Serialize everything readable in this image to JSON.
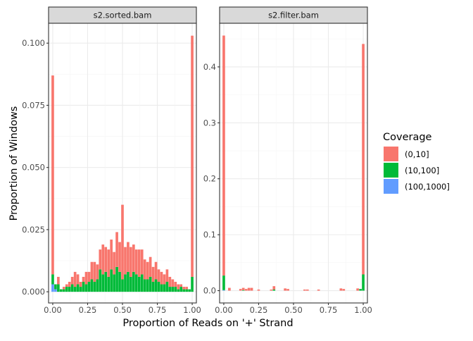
{
  "chart_data": {
    "type": "bar",
    "stacked": true,
    "xlabel": "Proportion of Reads on '+' Strand",
    "ylabel": "Proportion of Windows",
    "legend": {
      "title": "Coverage",
      "placement": "right",
      "entries": [
        {
          "name": "(0,10]",
          "color": "#F8766D"
        },
        {
          "name": "(10,100]",
          "color": "#00BA38"
        },
        {
          "name": "(100,1000]",
          "color": "#619CFF"
        }
      ]
    },
    "grid": true,
    "colors": {
      "panel_bg": "#FFFFFF",
      "grid_major": "#EBEBEB",
      "grid_minor": "#F5F5F5",
      "strip_bg": "#D9D9D9",
      "border": "#333333"
    },
    "xticks": [
      "0.00",
      "0.25",
      "0.50",
      "0.75",
      "1.00"
    ],
    "xlim": [
      -0.03,
      1.03
    ],
    "panels": [
      {
        "name": "s2.sorted.bam",
        "ylim": [
          -0.0045,
          0.108
        ],
        "yticks": [
          "0.000",
          "0.025",
          "0.050",
          "0.075",
          "0.100"
        ],
        "series": [
          {
            "name": "(0,10]",
            "points": [
              [
                0.0,
                0.08
              ],
              [
                0.02,
                0.0
              ],
              [
                0.04,
                0.003
              ],
              [
                0.06,
                0.0
              ],
              [
                0.08,
                0.001
              ],
              [
                0.1,
                0.001
              ],
              [
                0.12,
                0.002
              ],
              [
                0.14,
                0.003
              ],
              [
                0.16,
                0.006
              ],
              [
                0.18,
                0.004
              ],
              [
                0.2,
                0.002
              ],
              [
                0.22,
                0.002
              ],
              [
                0.24,
                0.005
              ],
              [
                0.26,
                0.004
              ],
              [
                0.28,
                0.007
              ],
              [
                0.3,
                0.008
              ],
              [
                0.32,
                0.006
              ],
              [
                0.34,
                0.008
              ],
              [
                0.36,
                0.012
              ],
              [
                0.38,
                0.01
              ],
              [
                0.4,
                0.011
              ],
              [
                0.42,
                0.012
              ],
              [
                0.44,
                0.009
              ],
              [
                0.46,
                0.014
              ],
              [
                0.48,
                0.012
              ],
              [
                0.5,
                0.03
              ],
              [
                0.52,
                0.011
              ],
              [
                0.54,
                0.012
              ],
              [
                0.56,
                0.012
              ],
              [
                0.58,
                0.011
              ],
              [
                0.6,
                0.01
              ],
              [
                0.62,
                0.011
              ],
              [
                0.64,
                0.01
              ],
              [
                0.66,
                0.008
              ],
              [
                0.68,
                0.007
              ],
              [
                0.7,
                0.008
              ],
              [
                0.72,
                0.006
              ],
              [
                0.74,
                0.007
              ],
              [
                0.76,
                0.005
              ],
              [
                0.78,
                0.005
              ],
              [
                0.8,
                0.004
              ],
              [
                0.82,
                0.005
              ],
              [
                0.84,
                0.004
              ],
              [
                0.86,
                0.003
              ],
              [
                0.88,
                0.002
              ],
              [
                0.9,
                0.002
              ],
              [
                0.92,
                0.001
              ],
              [
                0.94,
                0.001
              ],
              [
                0.96,
                0.001
              ],
              [
                0.98,
                0.0
              ],
              [
                1.0,
                0.097
              ]
            ]
          },
          {
            "name": "(10,100]",
            "points": [
              [
                0.0,
                0.004
              ],
              [
                0.02,
                0.002
              ],
              [
                0.04,
                0.003
              ],
              [
                0.06,
                0.001
              ],
              [
                0.08,
                0.001
              ],
              [
                0.1,
                0.002
              ],
              [
                0.12,
                0.002
              ],
              [
                0.14,
                0.003
              ],
              [
                0.16,
                0.002
              ],
              [
                0.18,
                0.003
              ],
              [
                0.2,
                0.002
              ],
              [
                0.22,
                0.004
              ],
              [
                0.24,
                0.003
              ],
              [
                0.26,
                0.004
              ],
              [
                0.28,
                0.005
              ],
              [
                0.3,
                0.004
              ],
              [
                0.32,
                0.005
              ],
              [
                0.34,
                0.009
              ],
              [
                0.36,
                0.007
              ],
              [
                0.38,
                0.008
              ],
              [
                0.4,
                0.006
              ],
              [
                0.42,
                0.009
              ],
              [
                0.44,
                0.007
              ],
              [
                0.46,
                0.01
              ],
              [
                0.48,
                0.008
              ],
              [
                0.5,
                0.005
              ],
              [
                0.52,
                0.007
              ],
              [
                0.54,
                0.008
              ],
              [
                0.56,
                0.006
              ],
              [
                0.58,
                0.008
              ],
              [
                0.6,
                0.007
              ],
              [
                0.62,
                0.006
              ],
              [
                0.64,
                0.007
              ],
              [
                0.66,
                0.005
              ],
              [
                0.68,
                0.005
              ],
              [
                0.7,
                0.006
              ],
              [
                0.72,
                0.004
              ],
              [
                0.74,
                0.005
              ],
              [
                0.76,
                0.004
              ],
              [
                0.78,
                0.003
              ],
              [
                0.8,
                0.003
              ],
              [
                0.82,
                0.004
              ],
              [
                0.84,
                0.002
              ],
              [
                0.86,
                0.002
              ],
              [
                0.88,
                0.002
              ],
              [
                0.9,
                0.001
              ],
              [
                0.92,
                0.002
              ],
              [
                0.94,
                0.001
              ],
              [
                0.96,
                0.001
              ],
              [
                0.98,
                0.001
              ],
              [
                1.0,
                0.006
              ]
            ]
          },
          {
            "name": "(100,1000]",
            "points": [
              [
                0.0,
                0.003
              ],
              [
                0.02,
                0.001
              ]
            ]
          }
        ]
      },
      {
        "name": "s2.filter.bam",
        "ylim": [
          -0.022,
          0.478
        ],
        "yticks": [
          "0.0",
          "0.1",
          "0.2",
          "0.3",
          "0.4"
        ],
        "series": [
          {
            "name": "(0,10]",
            "points": [
              [
                0.0,
                0.429
              ],
              [
                0.04,
                0.005
              ],
              [
                0.12,
                0.003
              ],
              [
                0.14,
                0.004
              ],
              [
                0.16,
                0.003
              ],
              [
                0.18,
                0.005
              ],
              [
                0.2,
                0.005
              ],
              [
                0.25,
                0.002
              ],
              [
                0.34,
                0.002
              ],
              [
                0.36,
                0.006
              ],
              [
                0.44,
                0.004
              ],
              [
                0.46,
                0.003
              ],
              [
                0.58,
                0.002
              ],
              [
                0.6,
                0.002
              ],
              [
                0.68,
                0.002
              ],
              [
                0.84,
                0.004
              ],
              [
                0.86,
                0.003
              ],
              [
                0.96,
                0.004
              ],
              [
                1.0,
                0.412
              ]
            ]
          },
          {
            "name": "(10,100]",
            "points": [
              [
                0.0,
                0.026
              ],
              [
                0.14,
                0.001
              ],
              [
                0.36,
                0.002
              ],
              [
                0.98,
                0.003
              ],
              [
                1.0,
                0.029
              ]
            ]
          },
          {
            "name": "(100,1000]",
            "points": [
              [
                0.0,
                0.001
              ]
            ]
          }
        ]
      }
    ]
  }
}
